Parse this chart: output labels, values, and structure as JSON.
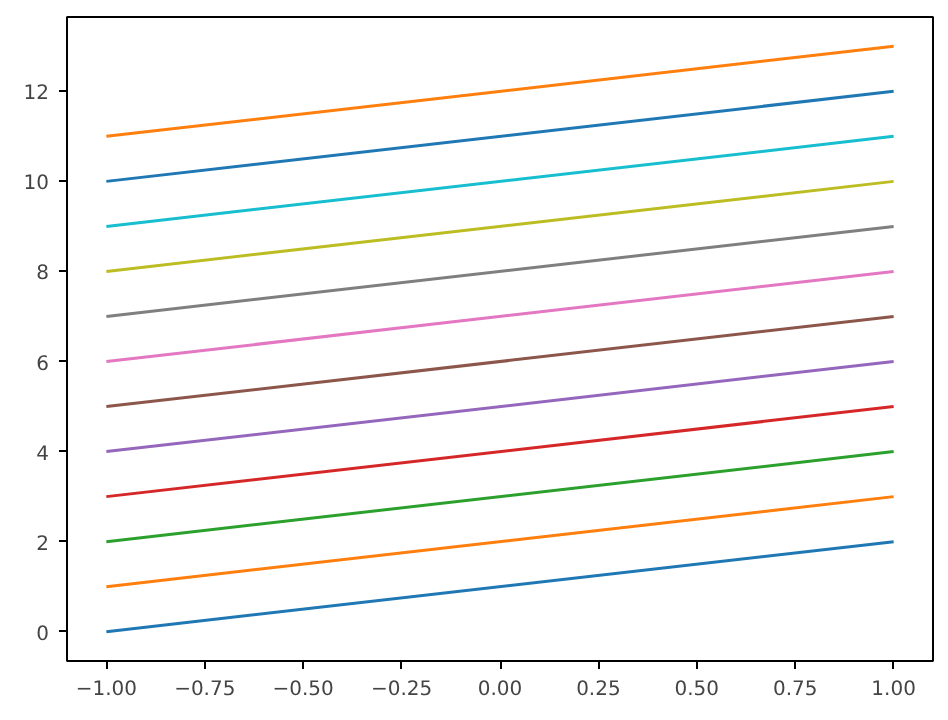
{
  "chart_data": {
    "type": "line",
    "x": [
      -1,
      1
    ],
    "series": [
      {
        "color": "#1f77b4",
        "values": [
          0,
          2
        ]
      },
      {
        "color": "#ff7f0e",
        "values": [
          1,
          3
        ]
      },
      {
        "color": "#2ca02c",
        "values": [
          2,
          4
        ]
      },
      {
        "color": "#d62728",
        "values": [
          3,
          5
        ]
      },
      {
        "color": "#9467bd",
        "values": [
          4,
          6
        ]
      },
      {
        "color": "#8c564b",
        "values": [
          5,
          7
        ]
      },
      {
        "color": "#e377c2",
        "values": [
          6,
          8
        ]
      },
      {
        "color": "#7f7f7f",
        "values": [
          7,
          9
        ]
      },
      {
        "color": "#bcbd22",
        "values": [
          8,
          10
        ]
      },
      {
        "color": "#17becf",
        "values": [
          9,
          11
        ]
      },
      {
        "color": "#1f77b4",
        "values": [
          10,
          12
        ]
      },
      {
        "color": "#ff7f0e",
        "values": [
          11,
          13
        ]
      }
    ],
    "xlim": [
      -1.1,
      1.1
    ],
    "ylim": [
      -0.65,
      13.65
    ],
    "xticks": [
      {
        "value": -1,
        "label": "−1.00"
      },
      {
        "value": -0.75,
        "label": "−0.75"
      },
      {
        "value": -0.5,
        "label": "−0.50"
      },
      {
        "value": -0.25,
        "label": "−0.25"
      },
      {
        "value": 0,
        "label": "0.00"
      },
      {
        "value": 0.25,
        "label": "0.25"
      },
      {
        "value": 0.5,
        "label": "0.50"
      },
      {
        "value": 0.75,
        "label": "0.75"
      },
      {
        "value": 1,
        "label": "1.00"
      }
    ],
    "yticks": [
      0,
      2,
      4,
      6,
      8,
      10,
      12
    ],
    "grid": false,
    "marker": "none",
    "line_style": "solid"
  }
}
